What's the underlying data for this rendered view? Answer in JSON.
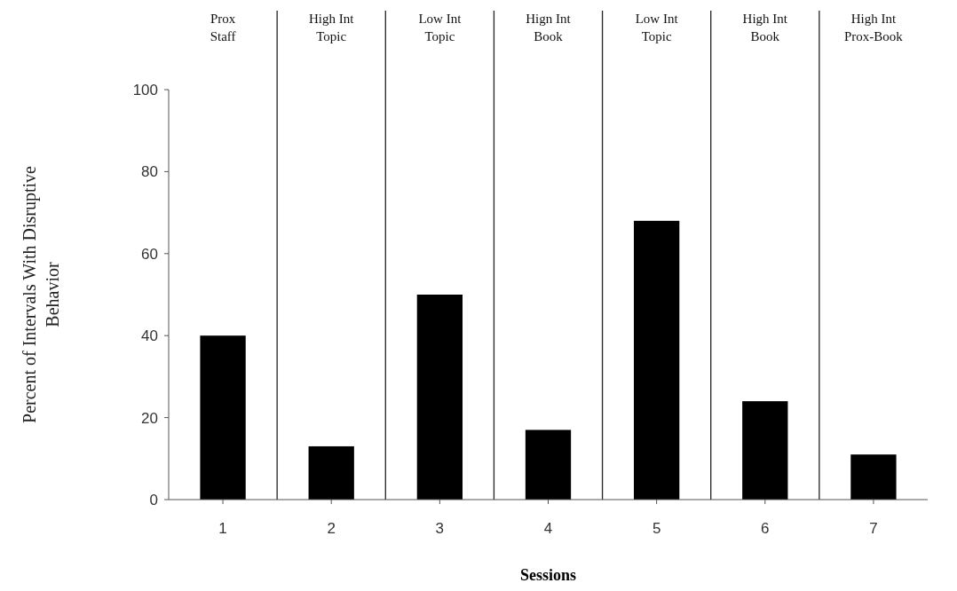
{
  "chart_data": {
    "type": "bar",
    "xlabel": "Sessions",
    "ylabel": "Percent of Intervals With Disruptive\nBehavior",
    "x": [
      1,
      2,
      3,
      4,
      5,
      6,
      7
    ],
    "xlim": [
      0.5,
      7.5
    ],
    "xticks": [
      1,
      2,
      3,
      4,
      5,
      6,
      7
    ],
    "ylim": [
      0,
      100
    ],
    "yticks": [
      0,
      20,
      40,
      60,
      80,
      100
    ],
    "values": [
      40,
      13,
      50,
      17,
      68,
      24,
      11
    ],
    "color": "#000000",
    "ref_lines": [
      {
        "axis": "x",
        "value": 1.5
      },
      {
        "axis": "x",
        "value": 2.5
      },
      {
        "axis": "x",
        "value": 3.5
      },
      {
        "axis": "x",
        "value": 4.5
      },
      {
        "axis": "x",
        "value": 5.5
      },
      {
        "axis": "x",
        "value": 6.5
      }
    ],
    "annotations": [
      "Prox\nStaff",
      "High Int\nTopic",
      "Low Int\nTopic",
      "Hign Int\nBook",
      "Low Int\nTopic",
      "High Int\nBook",
      "High Int\nProx-Book"
    ]
  }
}
